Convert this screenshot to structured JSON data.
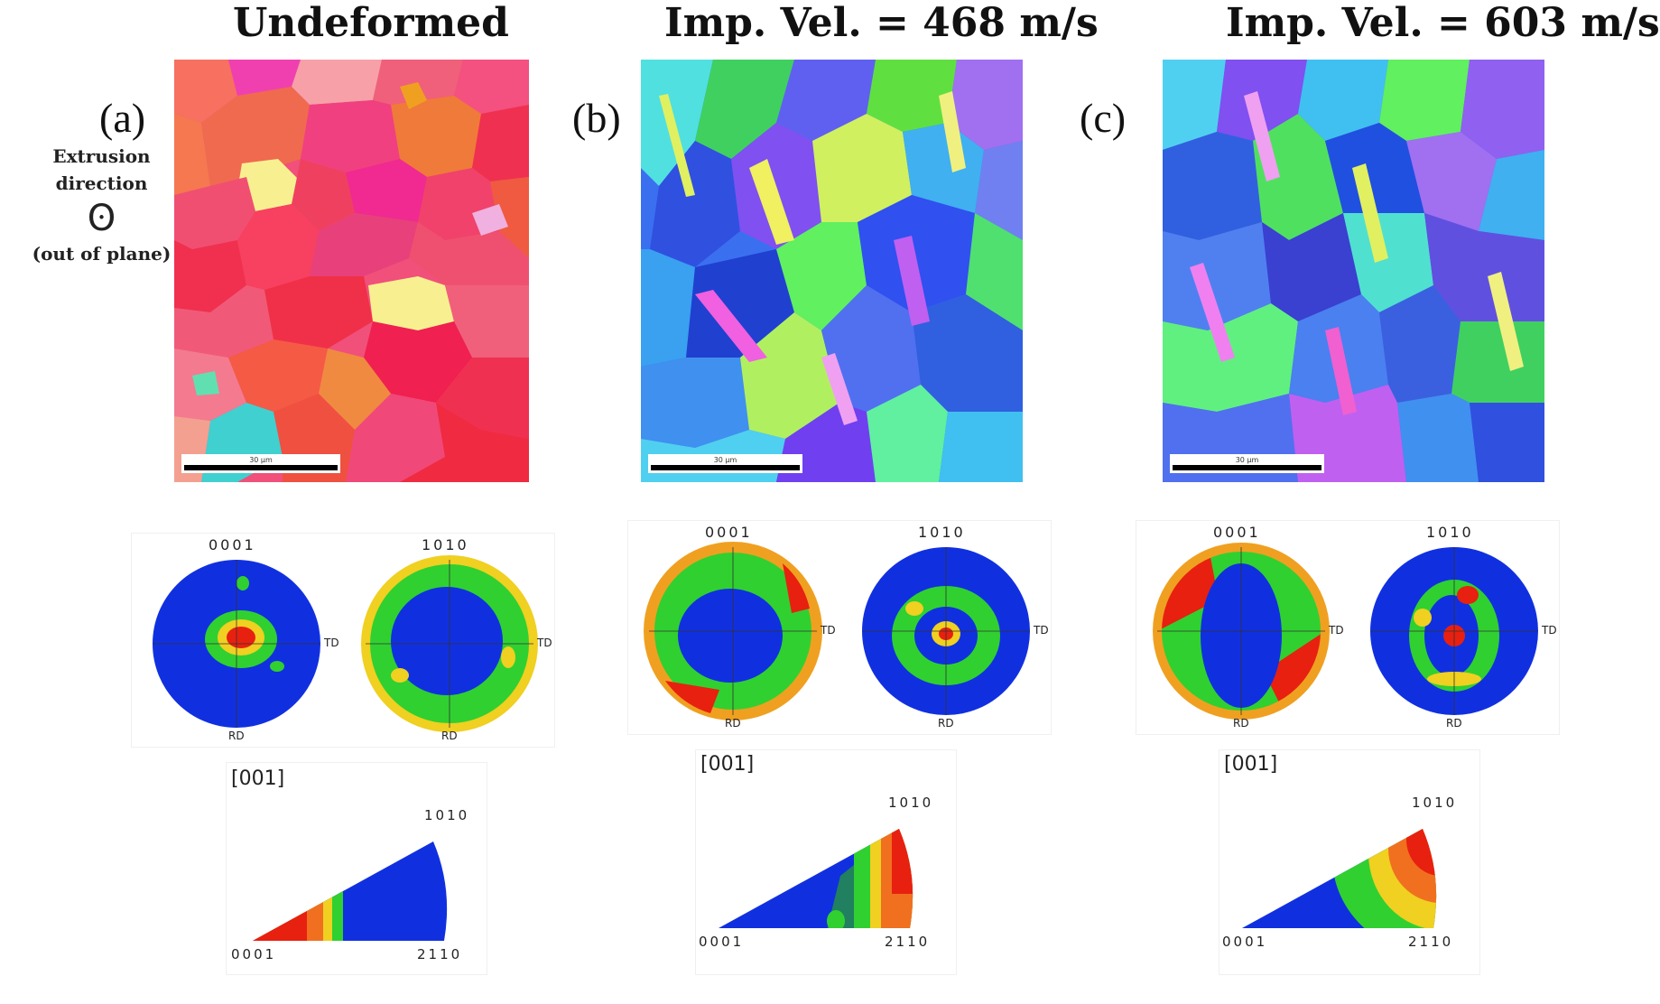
{
  "columns": [
    {
      "title": "Undeformed",
      "label": "(a)",
      "scale_text": "30 µm"
    },
    {
      "title": "Imp. Vel. = 468 m/s",
      "label": "(b)",
      "scale_text": "30 µm"
    },
    {
      "title": "Imp. Vel. = 603 m/s",
      "label": "(c)",
      "scale_text": "30 µm"
    }
  ],
  "side_note": {
    "line1": "Extrusion",
    "line2": "direction",
    "symbol": "ʘ",
    "line3": "(out of plane)"
  },
  "pole_figures": {
    "basal_label": "0001",
    "prism_label": "1010",
    "td": "TD",
    "rd": "RD"
  },
  "ipf": {
    "axis_label": "[001]",
    "corner_top": "1010",
    "corner_left": "0001",
    "corner_right": "2110"
  },
  "colors": {
    "pf_low": "#1030e0",
    "pf_mid": "#30d030",
    "pf_high": "#e82010",
    "pf_warm": "#f0d020"
  }
}
